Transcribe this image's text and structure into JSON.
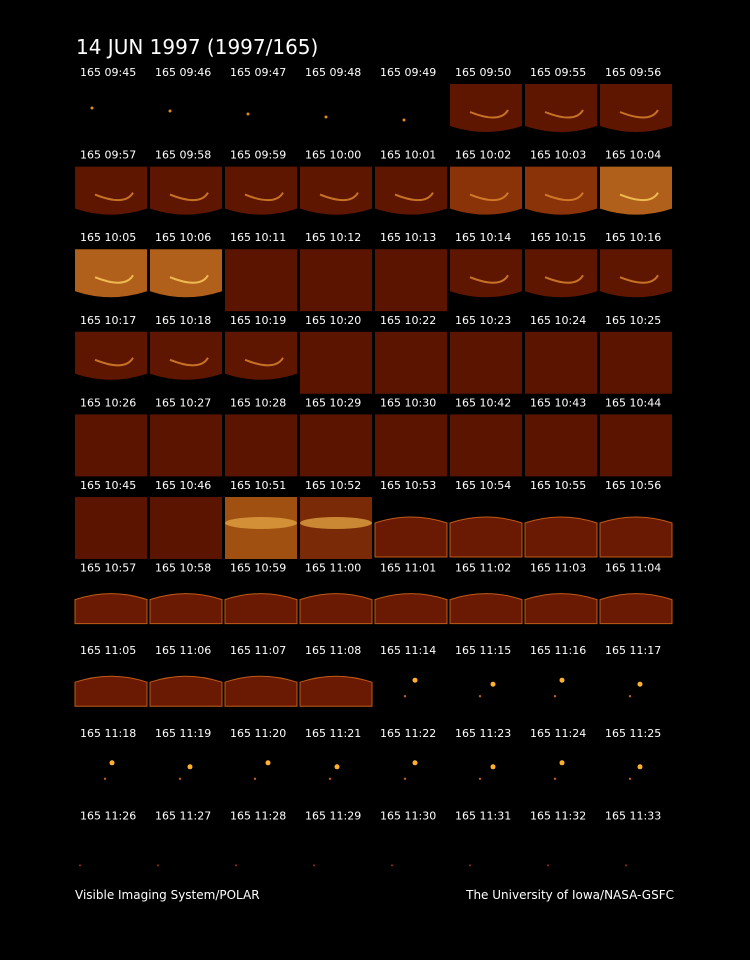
{
  "title": "14 JUN 1997  (1997/165)",
  "frames": [
    [
      "165 09:45",
      "165 09:46",
      "165 09:47",
      "165 09:48",
      "165 09:49",
      "165 09:50",
      "165 09:55",
      "165 09:56"
    ],
    [
      "165 09:57",
      "165 09:58",
      "165 09:59",
      "165 10:00",
      "165 10:01",
      "165 10:02",
      "165 10:03",
      "165 10:04"
    ],
    [
      "165 10:05",
      "165 10:06",
      "165 10:11",
      "165 10:12",
      "165 10:13",
      "165 10:14",
      "165 10:15",
      "165 10:16"
    ],
    [
      "165 10:17",
      "165 10:18",
      "165 10:19",
      "165 10:20",
      "165 10:22",
      "165 10:23",
      "165 10:24",
      "165 10:25"
    ],
    [
      "165 10:26",
      "165 10:27",
      "165 10:28",
      "165 10:29",
      "165 10:30",
      "165 10:42",
      "165 10:43",
      "165 10:44"
    ],
    [
      "165 10:45",
      "165 10:46",
      "165 10:51",
      "165 10:52",
      "165 10:53",
      "165 10:54",
      "165 10:55",
      "165 10:56"
    ],
    [
      "165 10:57",
      "165 10:58",
      "165 10:59",
      "165 11:00",
      "165 11:01",
      "165 11:02",
      "165 11:03",
      "165 11:04"
    ],
    [
      "165 11:05",
      "165 11:06",
      "165 11:07",
      "165 11:08",
      "165 11:14",
      "165 11:15",
      "165 11:16",
      "165 11:17"
    ],
    [
      "165 11:18",
      "165 11:19",
      "165 11:20",
      "165 11:21",
      "165 11:22",
      "165 11:23",
      "165 11:24",
      "165 11:25"
    ],
    [
      "165 11:26",
      "165 11:27",
      "165 11:28",
      "165 11:29",
      "165 11:30",
      "165 11:31",
      "165 11:32",
      "165 11:33"
    ]
  ],
  "footer": {
    "left": "Visible Imaging System/POLAR",
    "right": "The University of Iowa/NASA-GSFC"
  }
}
